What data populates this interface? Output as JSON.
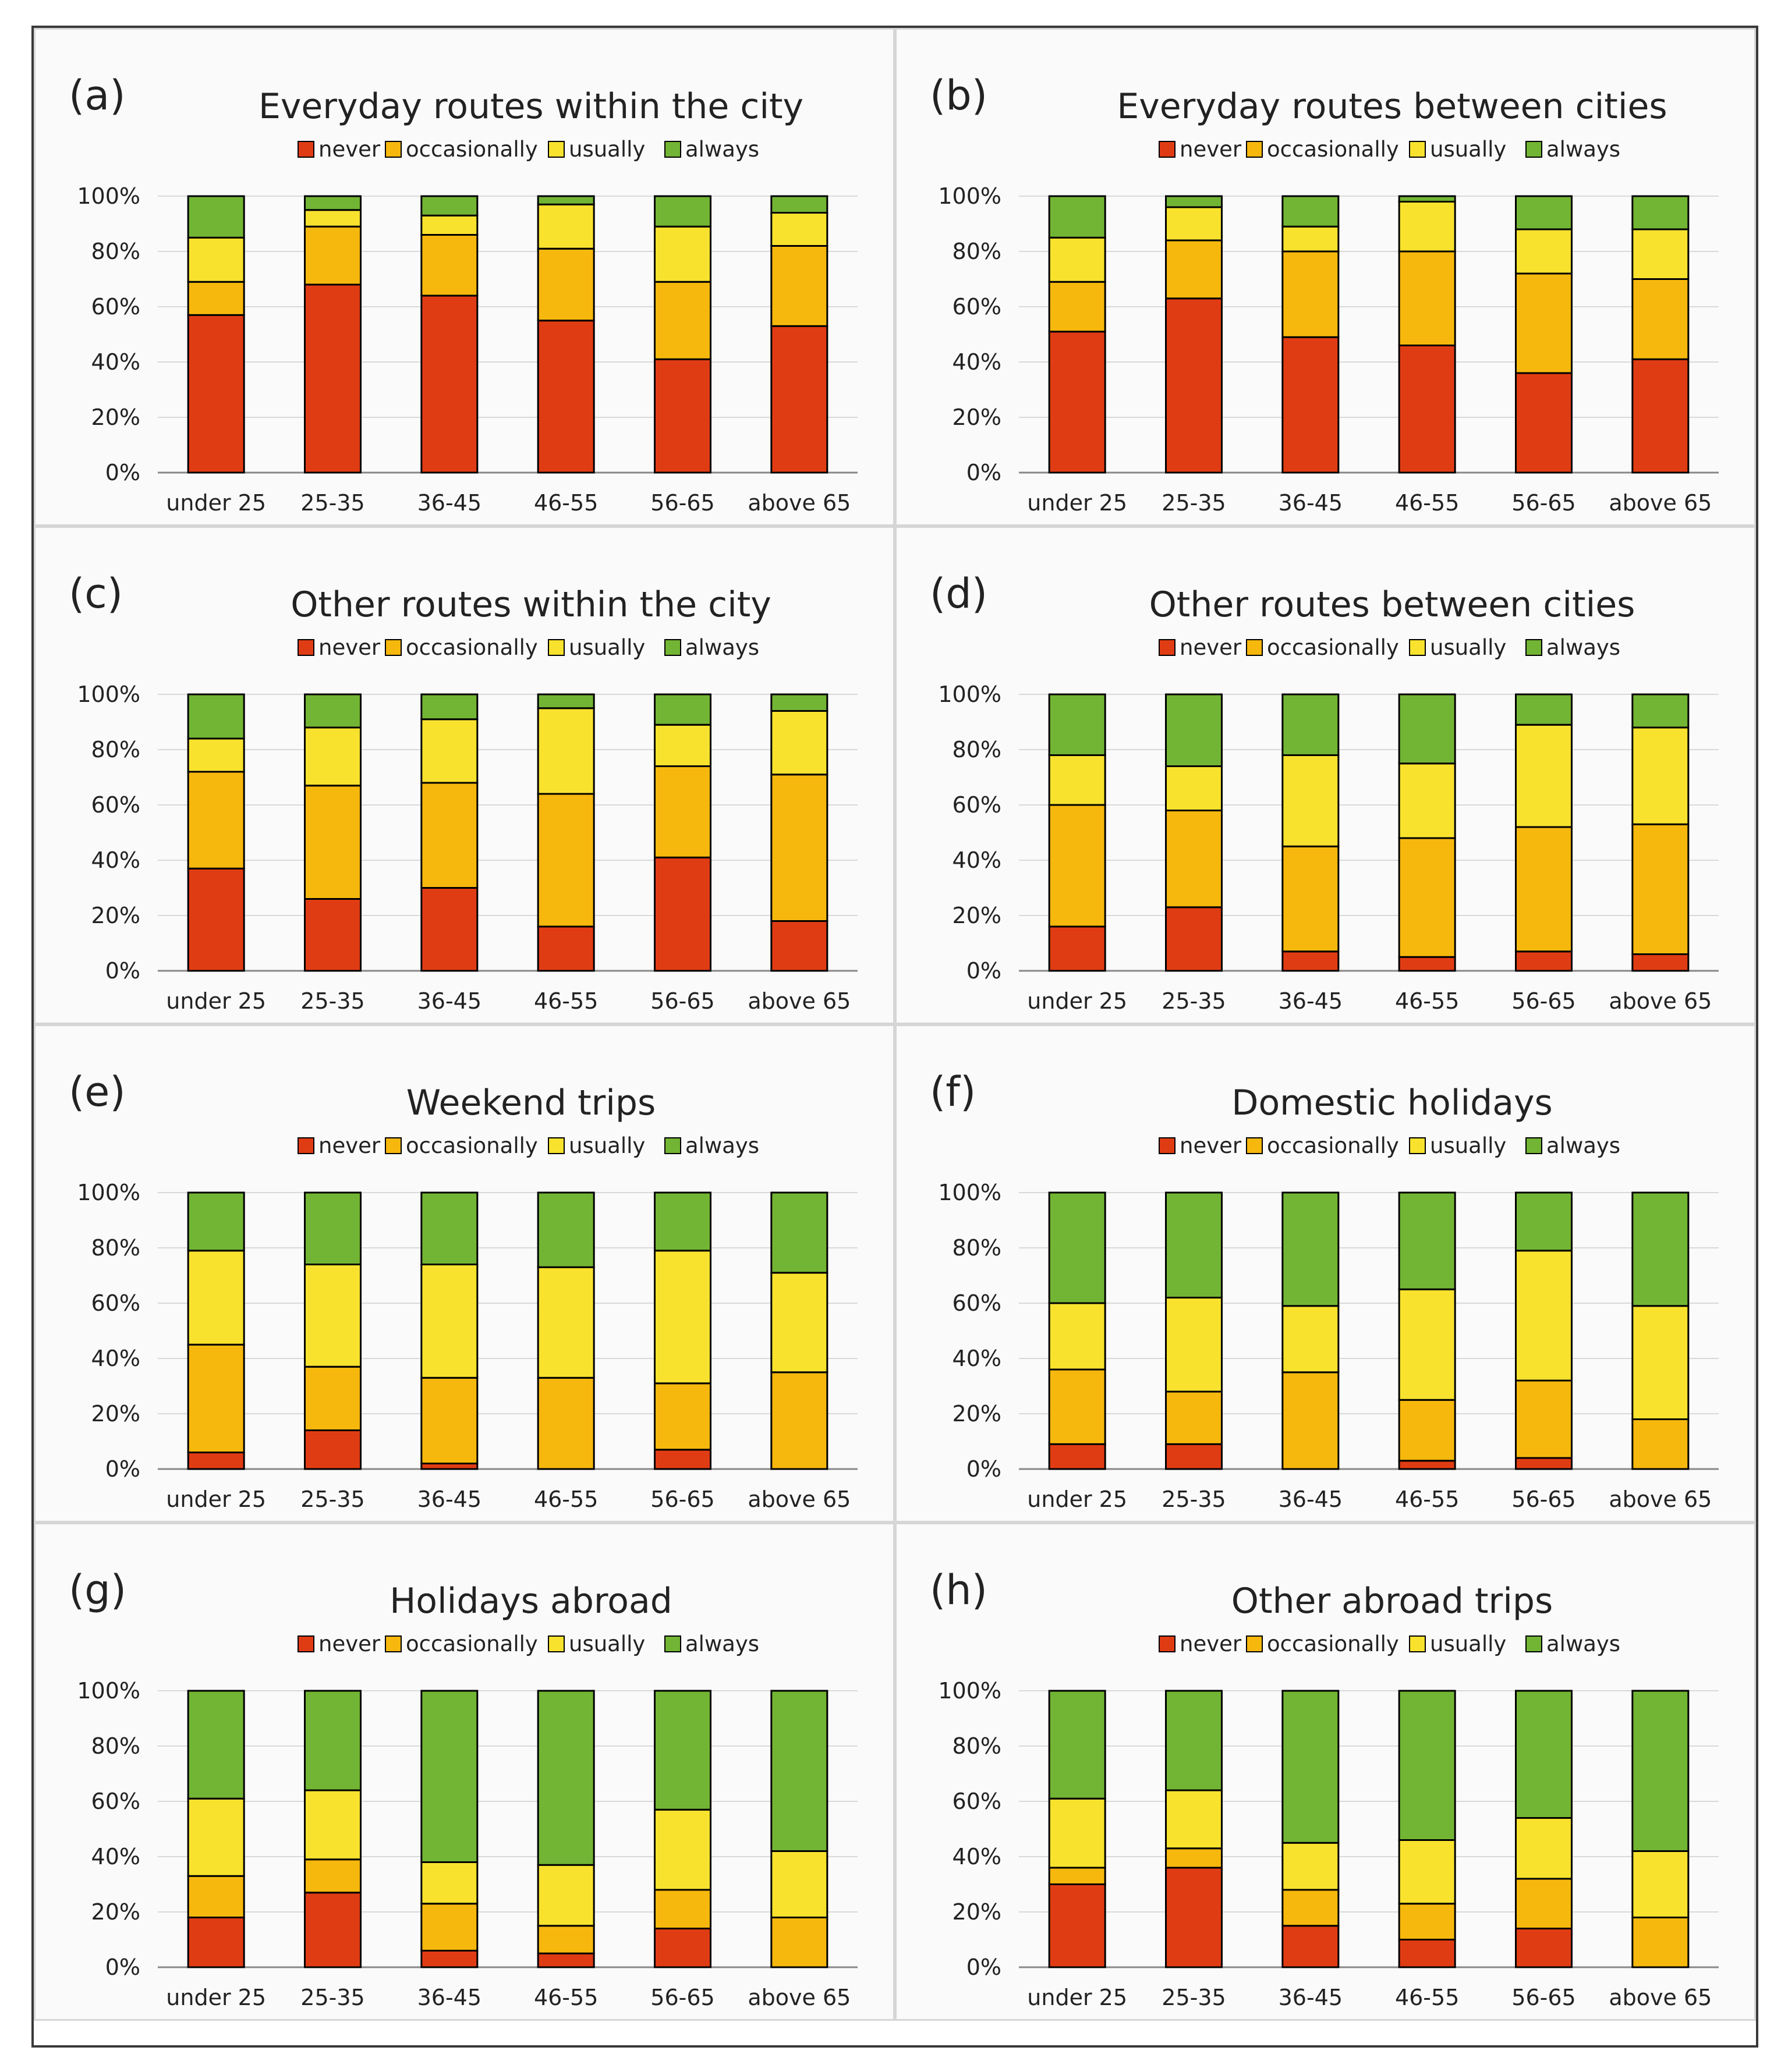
{
  "legend_labels": [
    "never",
    "occasionally",
    "usually",
    "always"
  ],
  "colors": {
    "never": "#e03c14",
    "occasionally": "#f7b80d",
    "usually": "#f8e22e",
    "always": "#72b534",
    "grid": "#d9d9d9",
    "axis": "#888888",
    "bar_outline": "#000000"
  },
  "chart_data": [
    {
      "panel": "(a)",
      "title": "Everyday routes within the city",
      "type": "bar",
      "stacked": true,
      "categories": [
        "under 25",
        "25-35",
        "36-45",
        "46-55",
        "56-65",
        "above 65"
      ],
      "series": [
        {
          "name": "never",
          "values": [
            57,
            68,
            64,
            55,
            41,
            53
          ]
        },
        {
          "name": "occasionally",
          "values": [
            12,
            21,
            22,
            26,
            28,
            29
          ]
        },
        {
          "name": "usually",
          "values": [
            16,
            6,
            7,
            16,
            20,
            12
          ]
        },
        {
          "name": "always",
          "values": [
            15,
            5,
            7,
            3,
            11,
            6
          ]
        }
      ],
      "ylim": [
        0,
        100
      ],
      "yticks": [
        "0%",
        "20%",
        "40%",
        "60%",
        "80%",
        "100%"
      ],
      "grid": true,
      "legend": "top"
    },
    {
      "panel": "(b)",
      "title": "Everyday routes between cities",
      "type": "bar",
      "stacked": true,
      "categories": [
        "under 25",
        "25-35",
        "36-45",
        "46-55",
        "56-65",
        "above 65"
      ],
      "series": [
        {
          "name": "never",
          "values": [
            51,
            63,
            49,
            46,
            36,
            41
          ]
        },
        {
          "name": "occasionally",
          "values": [
            18,
            21,
            31,
            34,
            36,
            29
          ]
        },
        {
          "name": "usually",
          "values": [
            16,
            12,
            9,
            18,
            16,
            18
          ]
        },
        {
          "name": "always",
          "values": [
            15,
            4,
            11,
            2,
            12,
            12
          ]
        }
      ],
      "ylim": [
        0,
        100
      ],
      "yticks": [
        "0%",
        "20%",
        "40%",
        "60%",
        "80%",
        "100%"
      ],
      "grid": true,
      "legend": "top"
    },
    {
      "panel": "(c)",
      "title": "Other routes within the city",
      "type": "bar",
      "stacked": true,
      "categories": [
        "under 25",
        "25-35",
        "36-45",
        "46-55",
        "56-65",
        "above 65"
      ],
      "series": [
        {
          "name": "never",
          "values": [
            37,
            26,
            30,
            16,
            41,
            18
          ]
        },
        {
          "name": "occasionally",
          "values": [
            35,
            41,
            38,
            48,
            33,
            53
          ]
        },
        {
          "name": "usually",
          "values": [
            12,
            21,
            23,
            31,
            15,
            23
          ]
        },
        {
          "name": "always",
          "values": [
            16,
            12,
            9,
            5,
            11,
            6
          ]
        }
      ],
      "ylim": [
        0,
        100
      ],
      "yticks": [
        "0%",
        "20%",
        "40%",
        "60%",
        "80%",
        "100%"
      ],
      "grid": true,
      "legend": "top"
    },
    {
      "panel": "(d)",
      "title": "Other routes between cities",
      "type": "bar",
      "stacked": true,
      "categories": [
        "under 25",
        "25-35",
        "36-45",
        "46-55",
        "56-65",
        "above 65"
      ],
      "series": [
        {
          "name": "never",
          "values": [
            16,
            23,
            7,
            5,
            7,
            6
          ]
        },
        {
          "name": "occasionally",
          "values": [
            44,
            35,
            38,
            43,
            45,
            47
          ]
        },
        {
          "name": "usually",
          "values": [
            18,
            16,
            33,
            27,
            37,
            35
          ]
        },
        {
          "name": "always",
          "values": [
            22,
            26,
            22,
            25,
            11,
            12
          ]
        }
      ],
      "ylim": [
        0,
        100
      ],
      "yticks": [
        "0%",
        "20%",
        "40%",
        "60%",
        "80%",
        "100%"
      ],
      "grid": true,
      "legend": "top"
    },
    {
      "panel": "(e)",
      "title": "Weekend trips",
      "type": "bar",
      "stacked": true,
      "categories": [
        "under 25",
        "25-35",
        "36-45",
        "46-55",
        "56-65",
        "above 65"
      ],
      "series": [
        {
          "name": "never",
          "values": [
            6,
            14,
            2,
            0,
            7,
            0
          ]
        },
        {
          "name": "occasionally",
          "values": [
            39,
            23,
            31,
            33,
            24,
            35
          ]
        },
        {
          "name": "usually",
          "values": [
            34,
            37,
            41,
            40,
            48,
            36
          ]
        },
        {
          "name": "always",
          "values": [
            21,
            26,
            26,
            27,
            21,
            29
          ]
        }
      ],
      "ylim": [
        0,
        100
      ],
      "yticks": [
        "0%",
        "20%",
        "40%",
        "60%",
        "80%",
        "100%"
      ],
      "grid": true,
      "legend": "top"
    },
    {
      "panel": "(f)",
      "title": "Domestic holidays",
      "type": "bar",
      "stacked": true,
      "categories": [
        "under 25",
        "25-35",
        "36-45",
        "46-55",
        "56-65",
        "above 65"
      ],
      "series": [
        {
          "name": "never",
          "values": [
            9,
            9,
            0,
            3,
            4,
            0
          ]
        },
        {
          "name": "occasionally",
          "values": [
            27,
            19,
            35,
            22,
            28,
            18
          ]
        },
        {
          "name": "usually",
          "values": [
            24,
            34,
            24,
            40,
            47,
            41
          ]
        },
        {
          "name": "always",
          "values": [
            40,
            38,
            41,
            35,
            21,
            41
          ]
        }
      ],
      "ylim": [
        0,
        100
      ],
      "yticks": [
        "0%",
        "20%",
        "40%",
        "60%",
        "80%",
        "100%"
      ],
      "grid": true,
      "legend": "top"
    },
    {
      "panel": "(g)",
      "title": "Holidays abroad",
      "type": "bar",
      "stacked": true,
      "categories": [
        "under 25",
        "25-35",
        "36-45",
        "46-55",
        "56-65",
        "above 65"
      ],
      "series": [
        {
          "name": "never",
          "values": [
            18,
            27,
            6,
            5,
            14,
            0
          ]
        },
        {
          "name": "occasionally",
          "values": [
            15,
            12,
            17,
            10,
            14,
            18
          ]
        },
        {
          "name": "usually",
          "values": [
            28,
            25,
            15,
            22,
            29,
            24
          ]
        },
        {
          "name": "always",
          "values": [
            39,
            36,
            62,
            63,
            43,
            58
          ]
        }
      ],
      "ylim": [
        0,
        100
      ],
      "yticks": [
        "0%",
        "20%",
        "40%",
        "60%",
        "80%",
        "100%"
      ],
      "grid": true,
      "legend": "top"
    },
    {
      "panel": "(h)",
      "title": "Other abroad trips",
      "type": "bar",
      "stacked": true,
      "categories": [
        "under 25",
        "25-35",
        "36-45",
        "46-55",
        "56-65",
        "above 65"
      ],
      "series": [
        {
          "name": "never",
          "values": [
            30,
            36,
            15,
            10,
            14,
            0
          ]
        },
        {
          "name": "occasionally",
          "values": [
            6,
            7,
            13,
            13,
            18,
            18
          ]
        },
        {
          "name": "usually",
          "values": [
            25,
            21,
            17,
            23,
            22,
            24
          ]
        },
        {
          "name": "always",
          "values": [
            39,
            36,
            55,
            54,
            46,
            58
          ]
        }
      ],
      "ylim": [
        0,
        100
      ],
      "yticks": [
        "0%",
        "20%",
        "40%",
        "60%",
        "80%",
        "100%"
      ],
      "grid": true,
      "legend": "top"
    }
  ]
}
